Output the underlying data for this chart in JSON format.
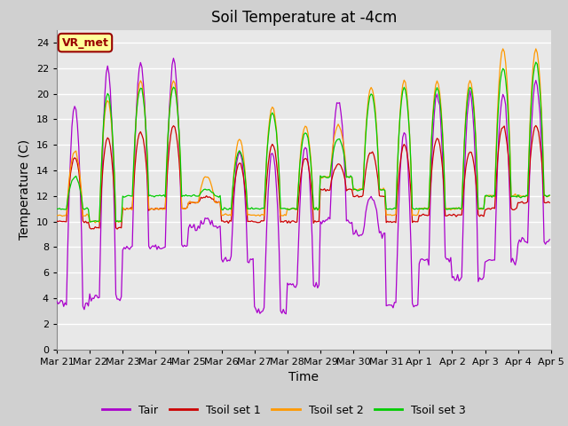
{
  "title": "Soil Temperature at -4cm",
  "xlabel": "Time",
  "ylabel": "Temperature (C)",
  "ylim": [
    0,
    25
  ],
  "yticks": [
    0,
    2,
    4,
    6,
    8,
    10,
    12,
    14,
    16,
    18,
    20,
    22,
    24
  ],
  "legend_labels": [
    "Tair",
    "Tsoil set 1",
    "Tsoil set 2",
    "Tsoil set 3"
  ],
  "line_colors": [
    "#aa00cc",
    "#cc0000",
    "#ff9900",
    "#00cc00"
  ],
  "annotation_text": "VR_met",
  "annotation_color": "#990000",
  "annotation_bg": "#ffff99",
  "background_color": "#e8e8e8",
  "grid_color": "#ffffff",
  "title_fontsize": 12,
  "axis_fontsize": 10,
  "tick_fontsize": 8,
  "day_labels": [
    "Mar 21",
    "Mar 22",
    "Mar 23",
    "Mar 24",
    "Mar 25",
    "Mar 26",
    "Mar 27",
    "Mar 28",
    "Mar 29",
    "Mar 30",
    "Mar 31",
    "Apr 1",
    "Apr 2",
    "Apr 3",
    "Apr 4",
    "Apr 5"
  ],
  "tair_min": [
    3.5,
    4.0,
    8.0,
    8.0,
    9.5,
    7.0,
    3.0,
    5.0,
    10.0,
    9.0,
    3.5,
    7.0,
    5.5,
    7.0,
    8.5
  ],
  "tair_max": [
    19.0,
    22.0,
    22.5,
    22.5,
    10.0,
    15.5,
    15.5,
    16.0,
    19.5,
    12.0,
    17.0,
    20.0,
    20.0,
    20.0,
    21.0
  ],
  "ts1_min": [
    10.0,
    9.5,
    11.0,
    11.0,
    11.5,
    10.0,
    10.0,
    10.0,
    12.5,
    12.0,
    10.0,
    10.5,
    10.5,
    11.0,
    11.5
  ],
  "ts1_max": [
    15.0,
    16.5,
    17.0,
    17.5,
    12.0,
    14.5,
    16.0,
    15.0,
    14.5,
    15.5,
    16.0,
    16.5,
    15.5,
    17.5,
    17.5
  ],
  "ts2_min": [
    10.5,
    10.0,
    11.0,
    11.0,
    11.5,
    10.5,
    10.5,
    11.0,
    13.5,
    12.5,
    10.5,
    11.0,
    11.0,
    12.0,
    12.0
  ],
  "ts2_max": [
    15.5,
    19.5,
    21.0,
    21.0,
    13.5,
    16.5,
    19.0,
    17.5,
    17.5,
    20.5,
    21.0,
    21.0,
    21.0,
    23.5,
    23.5
  ],
  "ts3_min": [
    11.0,
    10.0,
    12.0,
    12.0,
    12.0,
    11.0,
    11.0,
    11.0,
    13.5,
    12.5,
    11.0,
    11.0,
    11.0,
    12.0,
    12.0
  ],
  "ts3_max": [
    13.5,
    20.0,
    20.5,
    20.5,
    12.5,
    15.5,
    18.5,
    17.0,
    16.5,
    20.0,
    20.5,
    20.5,
    20.5,
    22.0,
    22.5
  ]
}
